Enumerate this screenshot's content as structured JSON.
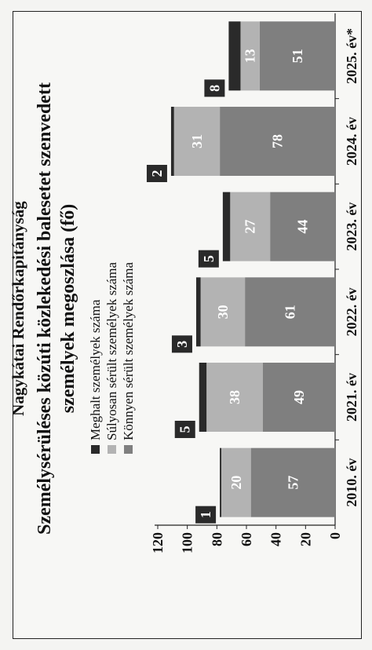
{
  "header": {
    "institution": "Nagykátai Rendőrkapitányság"
  },
  "chart_data": {
    "type": "bar",
    "stacked": true,
    "orientation": "vertical",
    "title": "Személysérüléses közúti közlekedési balesetet szenvedett személyek megoszlása (fő)",
    "title_lines": [
      "Személysérüléses közúti közlekedési balesetet szenvedett",
      "személyek megoszlása (fő)"
    ],
    "categories": [
      "2010. év",
      "2021. év",
      "2022. év",
      "2023. év",
      "2024. év",
      "2025. év*"
    ],
    "series": [
      {
        "name": "Könnyen sérült személyek száma",
        "values": [
          57,
          49,
          61,
          44,
          78,
          51
        ],
        "color": "#7f7f7f"
      },
      {
        "name": "Súlyosan sérült személyek száma",
        "values": [
          20,
          38,
          30,
          27,
          31,
          13
        ],
        "color": "#b3b3b3"
      },
      {
        "name": "Meghalt személyek száma",
        "values": [
          1,
          5,
          3,
          5,
          2,
          8
        ],
        "color": "#2a2a2a"
      }
    ],
    "legend_order": [
      "Meghalt személyek száma",
      "Súlyosan sérült személyek száma",
      "Könnyen sérült személyek száma"
    ],
    "ylim": [
      0,
      120
    ],
    "yticks": [
      "0",
      "20",
      "40",
      "60",
      "80",
      "100",
      "120"
    ],
    "legend_position": "top-left",
    "grid": false,
    "xlabel": "",
    "ylabel": ""
  }
}
